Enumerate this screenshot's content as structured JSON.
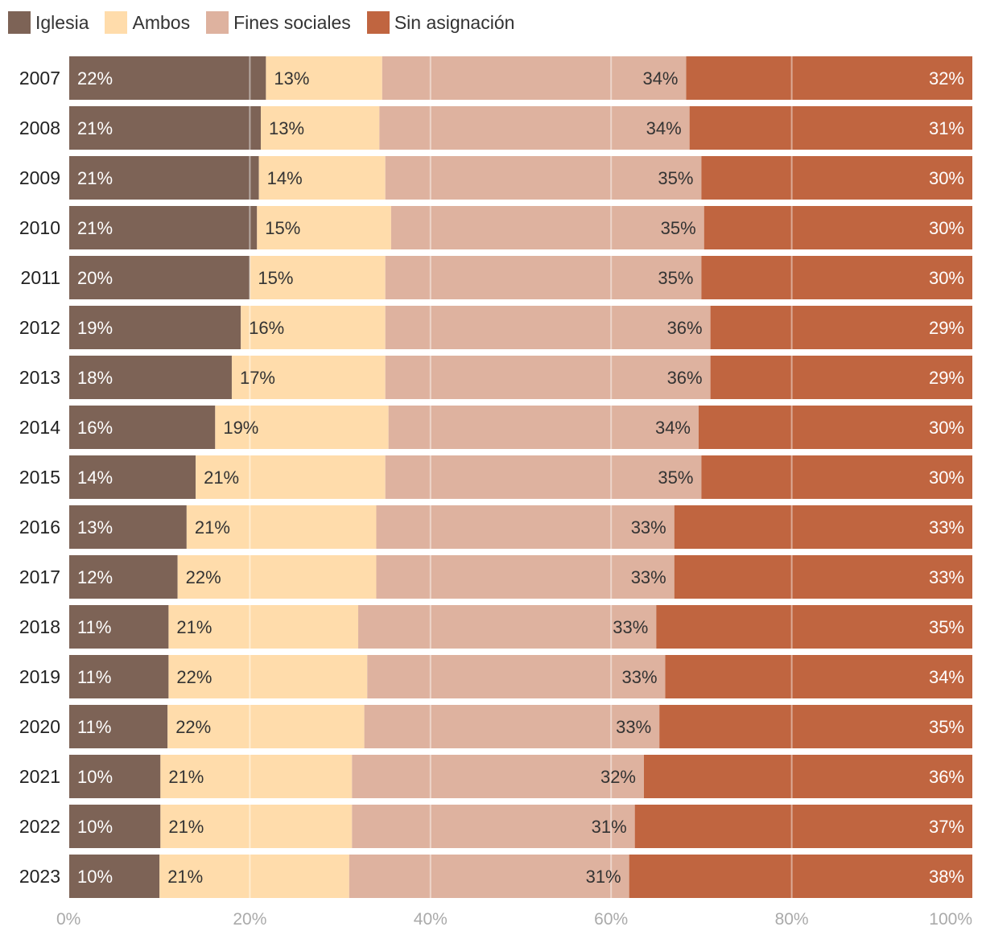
{
  "chart_data": {
    "type": "bar",
    "orientation": "horizontal",
    "stacked": true,
    "title": "",
    "xlabel": "",
    "ylabel": "",
    "xlim": [
      0,
      100
    ],
    "x_ticks": [
      "0%",
      "20%",
      "40%",
      "60%",
      "80%",
      "100%"
    ],
    "legend_position": "top-left",
    "categories": [
      "2007",
      "2008",
      "2009",
      "2010",
      "2011",
      "2012",
      "2013",
      "2014",
      "2015",
      "2016",
      "2017",
      "2018",
      "2019",
      "2020",
      "2021",
      "2022",
      "2023"
    ],
    "series": [
      {
        "name": "Iglesia",
        "color": "#7d6356",
        "label_color": "#ffffff",
        "label_align": "left",
        "values": [
          22,
          21,
          21,
          21,
          20,
          19,
          18,
          16,
          14,
          13,
          12,
          11,
          11,
          11,
          10,
          10,
          10
        ]
      },
      {
        "name": "Ambos",
        "color": "#ffdcab",
        "label_color": "#333333",
        "label_align": "left",
        "values": [
          13,
          13,
          14,
          15,
          15,
          16,
          17,
          19,
          21,
          21,
          22,
          21,
          22,
          22,
          21,
          21,
          21
        ]
      },
      {
        "name": "Fines sociales",
        "color": "#deb29f",
        "label_color": "#333333",
        "label_align": "right",
        "values": [
          34,
          34,
          35,
          35,
          35,
          36,
          36,
          34,
          35,
          33,
          33,
          33,
          33,
          33,
          32,
          31,
          31
        ]
      },
      {
        "name": "Sin asignación",
        "color": "#c06540",
        "label_color": "#ffffff",
        "label_align": "right",
        "values": [
          32,
          31,
          30,
          30,
          30,
          29,
          29,
          30,
          30,
          33,
          33,
          35,
          34,
          35,
          36,
          37,
          38
        ]
      }
    ]
  }
}
